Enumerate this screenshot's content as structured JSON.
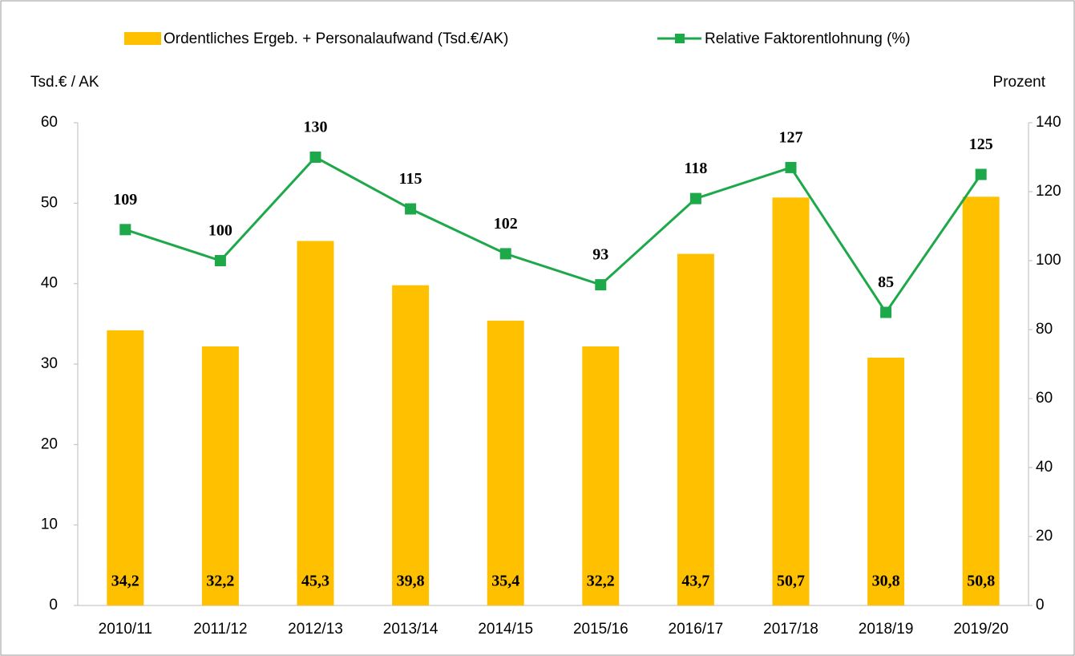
{
  "chart_data": {
    "type": "bar",
    "y_label": "Tsd.€ / AK",
    "y2_label": "Prozent",
    "categories": [
      "2010/11",
      "2011/12",
      "2012/13",
      "2013/14",
      "2014/15",
      "2015/16",
      "2016/17",
      "2017/18",
      "2018/19",
      "2019/20"
    ],
    "series": [
      {
        "name": "Ordentliches Ergeb. + Personalaufwand (Tsd.€/AK)",
        "type": "bar",
        "color": "#FFC000",
        "values": [
          34.2,
          32.2,
          45.3,
          39.8,
          35.4,
          32.2,
          43.7,
          50.7,
          30.8,
          50.8
        ],
        "value_labels": [
          "34,2",
          "32,2",
          "45,3",
          "39,8",
          "35,4",
          "32,2",
          "43,7",
          "50,7",
          "30,8",
          "50,8"
        ]
      },
      {
        "name": "Relative Faktorentlohnung (%)",
        "type": "line",
        "axis": "y2",
        "color": "#1DA84A",
        "values": [
          109,
          100,
          130,
          115,
          102,
          93,
          118,
          127,
          85,
          125
        ]
      }
    ],
    "ylim": [
      0,
      60
    ],
    "yticks": [
      0,
      10,
      20,
      30,
      40,
      50,
      60
    ],
    "y2lim": [
      0,
      140
    ],
    "y2ticks": [
      0,
      20,
      40,
      60,
      80,
      100,
      120,
      140
    ]
  }
}
